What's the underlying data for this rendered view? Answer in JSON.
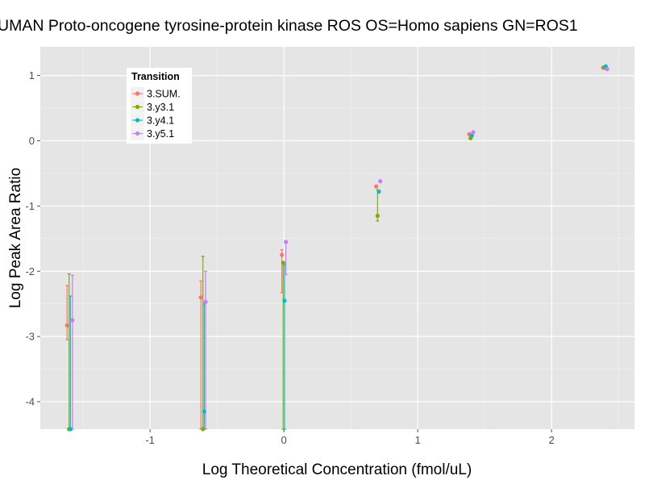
{
  "chart_data": {
    "type": "scatter",
    "title": "UMAN Proto-oncogene tyrosine-protein kinase ROS OS=Homo sapiens GN=ROS1",
    "xlabel": "Log Theoretical Concentration (fmol/uL)",
    "ylabel": "Log Peak Area Ratio",
    "xlim": [
      -1.82,
      2.62
    ],
    "ylim": [
      -4.42,
      1.44
    ],
    "x_ticks": [
      -1,
      0,
      1,
      2
    ],
    "x_tick_labels": [
      "-1",
      "0",
      "1",
      "2"
    ],
    "y_ticks": [
      -4,
      -3,
      -2,
      -1,
      0,
      1
    ],
    "y_tick_labels": [
      "-4",
      "-3",
      "-2",
      "-1",
      "0",
      "1"
    ],
    "grid": true,
    "panel_background": "#e5e5e5",
    "grid_color": "#ffffff",
    "legend": {
      "title": "Transition",
      "position": "top-left"
    },
    "series": [
      {
        "name": "3.SUM.",
        "color": "#f8766d",
        "points": [
          {
            "x": -1.62,
            "y": -2.83,
            "lo": -3.05,
            "hi": -2.22
          },
          {
            "x": -0.62,
            "y": -2.4,
            "lo": -4.42,
            "hi": -2.15
          },
          {
            "x": -0.015,
            "y": -1.75,
            "lo": -2.33,
            "hi": -1.67
          },
          {
            "x": 0.69,
            "y": -0.7,
            "lo": -0.7,
            "hi": -0.7
          },
          {
            "x": 1.385,
            "y": 0.1,
            "lo": 0.1,
            "hi": 0.1
          },
          {
            "x": 2.385,
            "y": 1.12,
            "lo": 1.12,
            "hi": 1.12
          }
        ]
      },
      {
        "name": "3.y3.1",
        "color": "#7cae00",
        "points": [
          {
            "x": -1.605,
            "y": -4.42,
            "lo": -4.42,
            "hi": -2.04
          },
          {
            "x": -0.605,
            "y": -4.42,
            "lo": -4.42,
            "hi": -1.77
          },
          {
            "x": -0.005,
            "y": -1.87,
            "lo": -4.42,
            "hi": -1.87
          },
          {
            "x": 0.7,
            "y": -1.15,
            "lo": -1.23,
            "hi": -0.75
          },
          {
            "x": 1.395,
            "y": 0.04,
            "lo": 0.04,
            "hi": 0.04
          },
          {
            "x": 2.395,
            "y": 1.12,
            "lo": 1.12,
            "hi": 1.12
          }
        ]
      },
      {
        "name": "3.y4.1",
        "color": "#00bfc4",
        "points": [
          {
            "x": -1.595,
            "y": -4.42,
            "lo": -4.42,
            "hi": -2.38
          },
          {
            "x": -0.595,
            "y": -4.15,
            "lo": -4.42,
            "hi": -2.5
          },
          {
            "x": 0.005,
            "y": -2.45,
            "lo": -4.42,
            "hi": -1.9
          },
          {
            "x": 0.71,
            "y": -0.78,
            "lo": -0.78,
            "hi": -0.78
          },
          {
            "x": 1.405,
            "y": 0.08,
            "lo": 0.08,
            "hi": 0.08
          },
          {
            "x": 2.405,
            "y": 1.14,
            "lo": 1.14,
            "hi": 1.14
          }
        ]
      },
      {
        "name": "3.y5.1",
        "color": "#c77cff",
        "points": [
          {
            "x": -1.58,
            "y": -2.75,
            "lo": -4.42,
            "hi": -2.06
          },
          {
            "x": -0.585,
            "y": -2.47,
            "lo": -4.42,
            "hi": -2.0
          },
          {
            "x": 0.015,
            "y": -1.55,
            "lo": -2.05,
            "hi": -1.55
          },
          {
            "x": 0.72,
            "y": -0.62,
            "lo": -0.62,
            "hi": -0.62
          },
          {
            "x": 1.415,
            "y": 0.13,
            "lo": 0.13,
            "hi": 0.13
          },
          {
            "x": 2.415,
            "y": 1.1,
            "lo": 1.1,
            "hi": 1.1
          }
        ]
      }
    ]
  }
}
